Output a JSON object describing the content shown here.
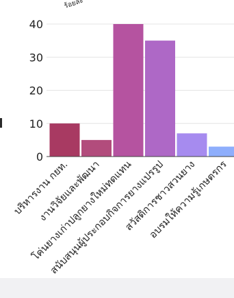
{
  "chart_data": {
    "type": "bar",
    "title": "",
    "xlabel": "",
    "ylabel": "ร้อยละ",
    "ylim": [
      0,
      40
    ],
    "yticks": [
      0,
      10,
      20,
      30,
      40
    ],
    "grid": true,
    "legend": "none",
    "categories": [
      "บริหารงาน กยท.",
      "งานวิจัยและพัฒนา",
      "โค่นยางเก่าปลูกยางใหม่ทดแทน",
      "สนับสนุนผู้ประกอบกิจการยางแปรรูป",
      "สวัสดิการชาวสวนยาง",
      "อบรมให้ความรู้เกษตรกร"
    ],
    "values": [
      10,
      5,
      40,
      35,
      7,
      3
    ],
    "colors": [
      "#a83a62",
      "#b24c7c",
      "#b553a0",
      "#ae68c6",
      "#a68bef",
      "#8eaefc"
    ]
  }
}
